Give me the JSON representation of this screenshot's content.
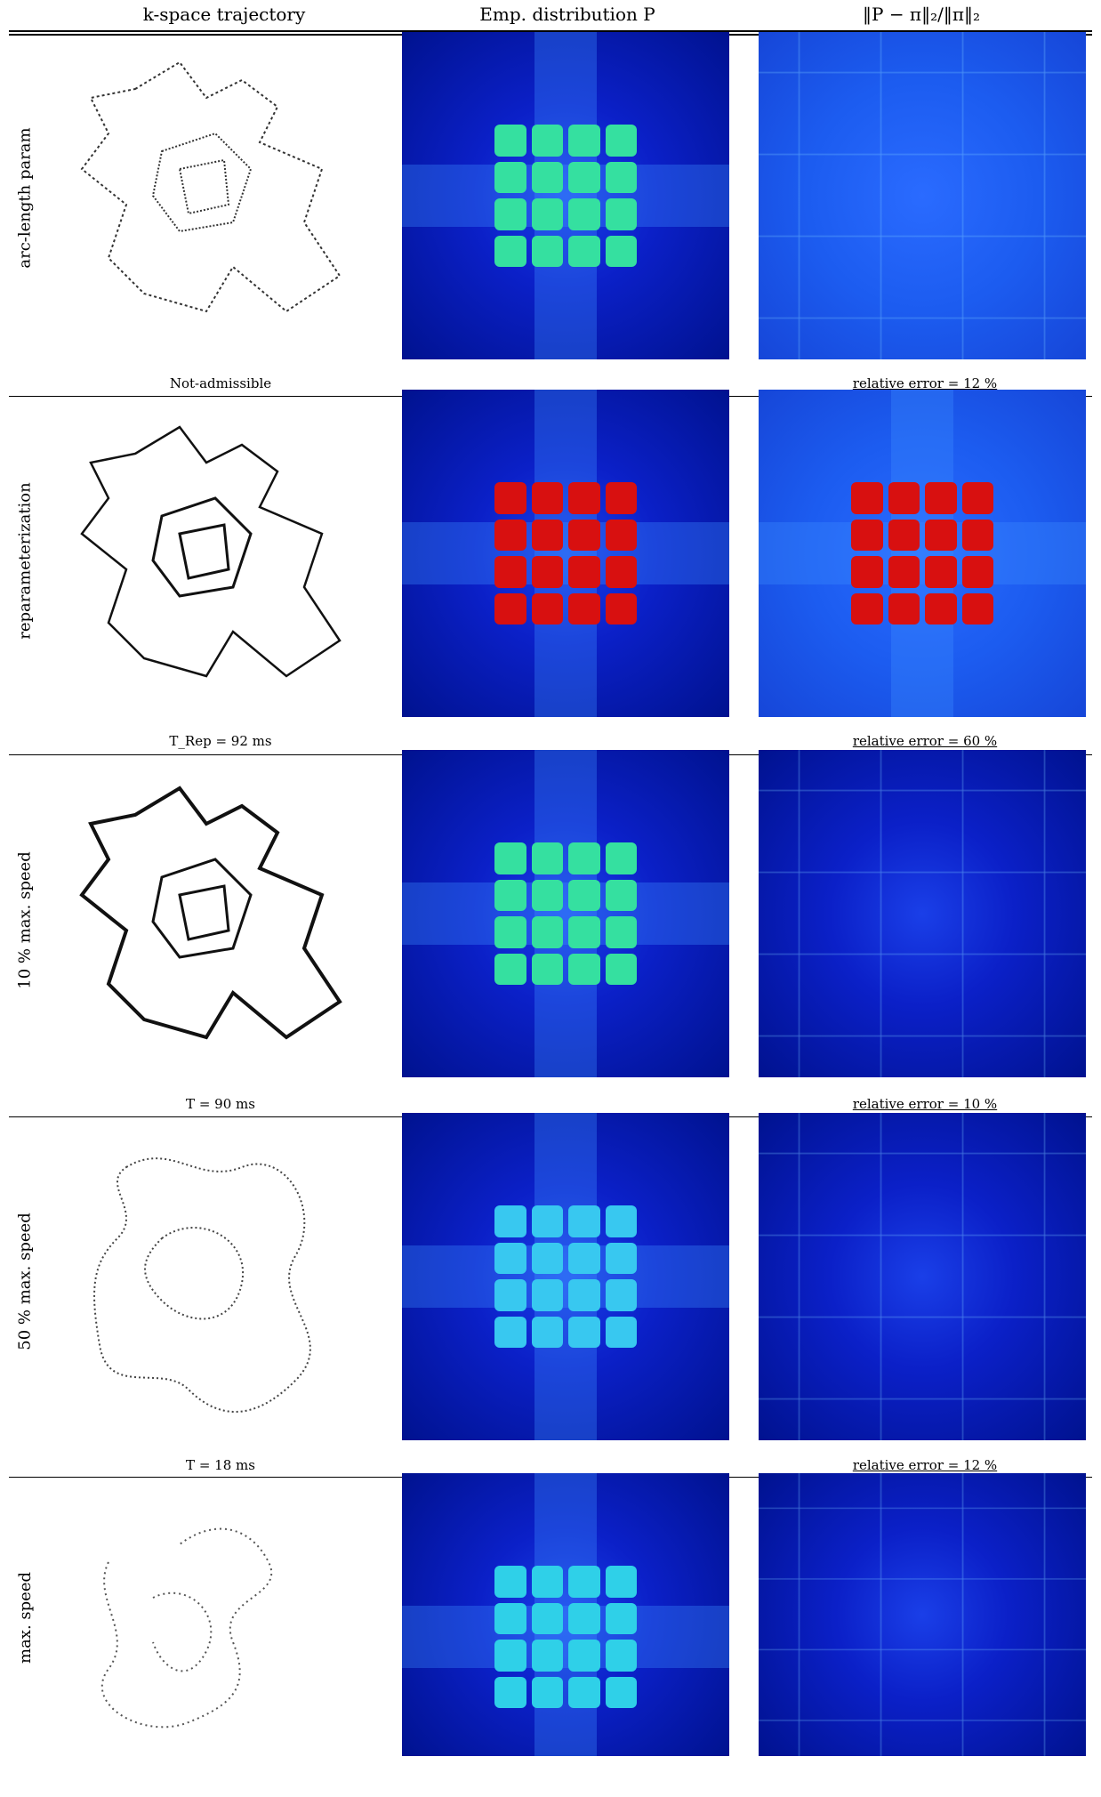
{
  "headers": {
    "col1": "k-space trajectory",
    "col2": "Emp. distribution P",
    "col3": "‖P − π‖₂/‖π‖₂"
  },
  "rows": [
    {
      "label": "arc-length param",
      "left_caption": "Not-admissible",
      "right_caption": "relative error = 12 %"
    },
    {
      "label": "reparameterization",
      "left_caption": "T_Rep = 92 ms",
      "right_caption": "relative error = 60 %"
    },
    {
      "label": "10 % max. speed",
      "left_caption": "T = 90 ms",
      "right_caption": "relative error = 10 %"
    },
    {
      "label": "50 % max. speed",
      "left_caption": "T = 18 ms",
      "right_caption": "relative error = 12 %"
    },
    {
      "label": "max. speed",
      "left_caption": "",
      "right_caption": ""
    }
  ],
  "colors": {
    "dark_blue": "#00128f",
    "mid_blue": "#1c5cf0",
    "green": "#35e0a0",
    "red": "#d81010"
  }
}
